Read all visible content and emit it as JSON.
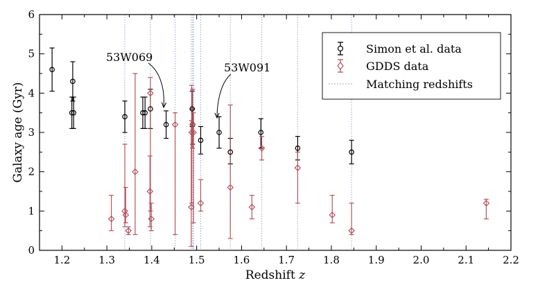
{
  "chart_data": {
    "type": "scatter",
    "title": "",
    "xlabel": "Redshift",
    "xlabel_var": "z",
    "ylabel": "Galaxy age (Gyr)",
    "xlim": [
      1.15,
      2.2
    ],
    "ylim": [
      0,
      6
    ],
    "x_ticks": [
      1.2,
      1.3,
      1.4,
      1.5,
      1.6,
      1.7,
      1.8,
      1.9,
      2.0,
      2.1,
      2.2
    ],
    "x_tick_labels": [
      "1.2",
      "1.3",
      "1.4",
      "1.5",
      "1.6",
      "1.7",
      "1.8",
      "1.9",
      "2.0",
      "2.1",
      "2.2"
    ],
    "y_ticks": [
      0,
      1,
      2,
      3,
      4,
      5,
      6
    ],
    "y_tick_labels": [
      "0",
      "1",
      "2",
      "3",
      "4",
      "5",
      "6"
    ],
    "grid": false,
    "legend_position": "top-right",
    "colors": {
      "simon": "#000000",
      "gdds": "#b5535f",
      "matching": "#8fa8cc"
    },
    "series": [
      {
        "name": "Simon et al. data",
        "marker": "circle",
        "points": [
          {
            "x": 1.178,
            "y": 4.6,
            "lo": 4.05,
            "hi": 5.15
          },
          {
            "x": 1.222,
            "y": 3.5,
            "lo": 3.1,
            "hi": 3.9
          },
          {
            "x": 1.224,
            "y": 4.3,
            "lo": 3.8,
            "hi": 4.8
          },
          {
            "x": 1.226,
            "y": 3.5,
            "lo": 3.1,
            "hi": 3.9
          },
          {
            "x": 1.34,
            "y": 3.4,
            "lo": 3.0,
            "hi": 3.8
          },
          {
            "x": 1.38,
            "y": 3.5,
            "lo": 3.1,
            "hi": 3.9
          },
          {
            "x": 1.385,
            "y": 3.5,
            "lo": 3.1,
            "hi": 3.9
          },
          {
            "x": 1.397,
            "y": 3.6,
            "lo": 3.1,
            "hi": 4.1
          },
          {
            "x": 1.432,
            "y": 3.2,
            "lo": 2.85,
            "hi": 3.55
          },
          {
            "x": 1.49,
            "y": 3.6,
            "lo": 3.15,
            "hi": 4.05
          },
          {
            "x": 1.491,
            "y": 3.2,
            "lo": 2.7,
            "hi": 3.6
          },
          {
            "x": 1.509,
            "y": 2.8,
            "lo": 2.45,
            "hi": 3.15
          },
          {
            "x": 1.55,
            "y": 3.0,
            "lo": 2.6,
            "hi": 3.4
          },
          {
            "x": 1.575,
            "y": 2.5,
            "lo": 2.2,
            "hi": 2.85
          },
          {
            "x": 1.643,
            "y": 3.0,
            "lo": 2.6,
            "hi": 3.35
          },
          {
            "x": 1.725,
            "y": 2.6,
            "lo": 2.3,
            "hi": 2.9
          },
          {
            "x": 1.845,
            "y": 2.5,
            "lo": 2.2,
            "hi": 2.8
          }
        ]
      },
      {
        "name": "GDDS data",
        "marker": "diamond",
        "points": [
          {
            "x": 1.31,
            "y": 0.8,
            "lo": 0.5,
            "hi": 1.4
          },
          {
            "x": 1.34,
            "y": 1.0,
            "lo": 0.6,
            "hi": 2.7
          },
          {
            "x": 1.342,
            "y": 0.9,
            "lo": 0.7,
            "hi": 1.6
          },
          {
            "x": 1.348,
            "y": 0.5,
            "lo": 0.4,
            "hi": 0.6
          },
          {
            "x": 1.363,
            "y": 2.0,
            "lo": 0.4,
            "hi": 4.5
          },
          {
            "x": 1.396,
            "y": 1.5,
            "lo": 0.6,
            "hi": 2.4
          },
          {
            "x": 1.397,
            "y": 4.0,
            "lo": 1.0,
            "hi": 4.4
          },
          {
            "x": 1.399,
            "y": 0.8,
            "lo": 0.5,
            "hi": 1.2
          },
          {
            "x": 1.452,
            "y": 3.2,
            "lo": 0.4,
            "hi": 3.5
          },
          {
            "x": 1.488,
            "y": 1.1,
            "lo": 0.1,
            "hi": 3.3
          },
          {
            "x": 1.489,
            "y": 3.0,
            "lo": 1.2,
            "hi": 4.2
          },
          {
            "x": 1.491,
            "y": 3.2,
            "lo": 2.6,
            "hi": 4.1
          },
          {
            "x": 1.493,
            "y": 3.0,
            "lo": 0.7,
            "hi": 3.5
          },
          {
            "x": 1.509,
            "y": 1.2,
            "lo": 1.0,
            "hi": 1.8
          },
          {
            "x": 1.575,
            "y": 1.6,
            "lo": 0.3,
            "hi": 3.7
          },
          {
            "x": 1.623,
            "y": 1.1,
            "lo": 0.8,
            "hi": 1.4
          },
          {
            "x": 1.645,
            "y": 2.6,
            "lo": 2.3,
            "hi": 2.9
          },
          {
            "x": 1.725,
            "y": 2.1,
            "lo": 1.2,
            "hi": 2.5
          },
          {
            "x": 1.802,
            "y": 0.9,
            "lo": 0.7,
            "hi": 1.4
          },
          {
            "x": 1.845,
            "y": 0.5,
            "lo": 0.4,
            "hi": 1.2
          },
          {
            "x": 2.145,
            "y": 1.2,
            "lo": 0.8,
            "hi": 1.3
          }
        ]
      }
    ],
    "matching_redshifts": {
      "name": "Matching redshifts",
      "x": [
        1.34,
        1.397,
        1.452,
        1.488,
        1.491,
        1.493,
        1.509,
        1.575,
        1.645,
        1.725,
        1.845
      ]
    },
    "annotations": [
      {
        "text": "53W069",
        "target_x": 1.432,
        "target_y": 3.55
      },
      {
        "text": "53W091",
        "target_x": 1.55,
        "target_y": 3.4
      }
    ]
  }
}
